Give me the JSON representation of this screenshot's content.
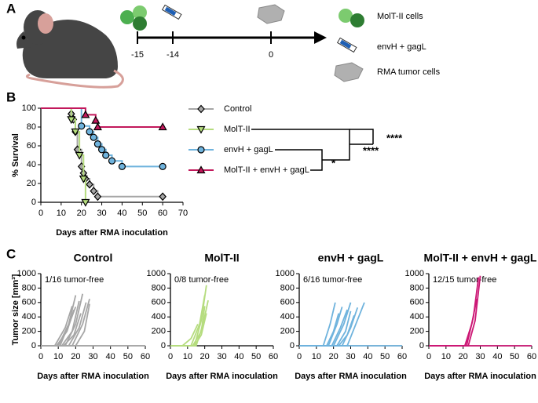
{
  "panel_labels": [
    "A",
    "B",
    "C"
  ],
  "timeline": {
    "days": [
      "-15",
      "-14",
      "0"
    ],
    "legend": [
      "MolT-II cells",
      "envH + gagL",
      "RMA tumor cells"
    ]
  },
  "chart_data": [
    {
      "type": "line",
      "step": true,
      "xlabel": "Days after RMA inoculation",
      "ylabel": "% Survival",
      "xlim": [
        0,
        70
      ],
      "xticks": [
        0,
        10,
        20,
        30,
        40,
        50,
        60,
        70
      ],
      "ylim": [
        0,
        100
      ],
      "yticks": [
        0,
        20,
        40,
        60,
        80,
        100
      ],
      "annotations": [
        "*",
        "****",
        "****"
      ],
      "series": [
        {
          "name": "Control",
          "color": "#a6a6a6",
          "marker": "diamond",
          "x": [
            0,
            15,
            16,
            17,
            18,
            20,
            21,
            22,
            24,
            26,
            28,
            60
          ],
          "values": [
            100,
            94,
            88,
            75,
            56,
            38,
            31,
            25,
            19,
            12,
            6,
            6
          ]
        },
        {
          "name": "MolT-II",
          "color": "#b5dc7e",
          "marker": "triangle-down",
          "x": [
            0,
            15,
            17,
            19,
            21,
            22
          ],
          "values": [
            100,
            88,
            75,
            50,
            25,
            0
          ]
        },
        {
          "name": "envH + gagL",
          "color": "#6fb3dd",
          "marker": "circle",
          "x": [
            0,
            20,
            24,
            26,
            28,
            30,
            32,
            35,
            40,
            60
          ],
          "values": [
            100,
            81,
            75,
            69,
            62,
            56,
            50,
            44,
            38,
            38
          ]
        },
        {
          "name": "MolT-II + envH + gagL",
          "color": "#c2185b",
          "marker": "triangle-up",
          "x": [
            0,
            22,
            27,
            28,
            60
          ],
          "values": [
            100,
            93,
            87,
            80,
            80
          ]
        }
      ]
    },
    {
      "type": "line",
      "title": "Control",
      "ylabel": "Tumor size [mm³]",
      "xlabel": "Days after RMA inoculation",
      "annotation": "1/16 tumor-free",
      "color": "#a6a6a6",
      "xlim": [
        0,
        60
      ],
      "xticks": [
        0,
        10,
        20,
        30,
        40,
        50,
        60
      ],
      "ylim": [
        0,
        1000
      ],
      "yticks": [
        0,
        200,
        400,
        600,
        800,
        1000
      ],
      "series": [
        {
          "x": [
            0,
            60
          ],
          "values": [
            0,
            0
          ]
        },
        {
          "x": [
            0,
            8,
            14,
            18
          ],
          "values": [
            0,
            0,
            250,
            550
          ]
        },
        {
          "x": [
            0,
            10,
            16,
            20
          ],
          "values": [
            0,
            0,
            300,
            700
          ]
        },
        {
          "x": [
            0,
            12,
            18,
            22
          ],
          "values": [
            0,
            0,
            200,
            620
          ]
        },
        {
          "x": [
            0,
            14,
            20,
            24
          ],
          "values": [
            0,
            0,
            300,
            720
          ]
        },
        {
          "x": [
            0,
            9,
            15,
            19
          ],
          "values": [
            0,
            0,
            200,
            500
          ]
        },
        {
          "x": [
            0,
            16,
            22,
            26
          ],
          "values": [
            0,
            0,
            250,
            600
          ]
        },
        {
          "x": [
            0,
            18,
            24,
            28
          ],
          "values": [
            0,
            0,
            300,
            650
          ]
        },
        {
          "x": [
            0,
            11,
            17,
            20
          ],
          "values": [
            0,
            0,
            350,
            540
          ]
        },
        {
          "x": [
            0,
            13,
            19,
            23
          ],
          "values": [
            0,
            0,
            150,
            450
          ]
        },
        {
          "x": [
            0,
            20,
            25,
            28
          ],
          "values": [
            0,
            0,
            200,
            580
          ]
        }
      ]
    },
    {
      "type": "line",
      "title": "MolT-II",
      "xlabel": "Days after RMA inoculation",
      "annotation": "0/8 tumor-free",
      "color": "#b5dc7e",
      "xlim": [
        0,
        60
      ],
      "xticks": [
        0,
        10,
        20,
        30,
        40,
        50,
        60
      ],
      "ylim": [
        0,
        1000
      ],
      "yticks": [
        0,
        200,
        400,
        600,
        800,
        1000
      ],
      "series": [
        {
          "x": [
            0,
            7,
            12,
            16
          ],
          "values": [
            0,
            0,
            100,
            300
          ]
        },
        {
          "x": [
            0,
            12,
            17,
            20
          ],
          "values": [
            0,
            0,
            300,
            700
          ]
        },
        {
          "x": [
            0,
            14,
            18,
            21
          ],
          "values": [
            0,
            0,
            350,
            840
          ]
        },
        {
          "x": [
            0,
            13,
            18,
            20
          ],
          "values": [
            0,
            0,
            200,
            550
          ]
        },
        {
          "x": [
            0,
            15,
            19,
            22
          ],
          "values": [
            0,
            0,
            300,
            630
          ]
        },
        {
          "x": [
            0,
            14,
            18,
            21
          ],
          "values": [
            0,
            0,
            150,
            450
          ]
        }
      ]
    },
    {
      "type": "line",
      "title": "envH + gagL",
      "xlabel": "Days after RMA inoculation",
      "annotation": "6/16 tumor-free",
      "color": "#6fb3dd",
      "xlim": [
        0,
        60
      ],
      "xticks": [
        0,
        10,
        20,
        30,
        40,
        50,
        60
      ],
      "ylim": [
        0,
        1000
      ],
      "yticks": [
        0,
        200,
        400,
        600,
        800,
        1000
      ],
      "series": [
        {
          "x": [
            0,
            60
          ],
          "values": [
            0,
            0
          ]
        },
        {
          "x": [
            0,
            14,
            18,
            21
          ],
          "values": [
            0,
            0,
            300,
            600
          ]
        },
        {
          "x": [
            0,
            16,
            20,
            23
          ],
          "values": [
            0,
            0,
            200,
            450
          ]
        },
        {
          "x": [
            0,
            17,
            22,
            25
          ],
          "values": [
            0,
            0,
            300,
            540
          ]
        },
        {
          "x": [
            0,
            19,
            24,
            28
          ],
          "values": [
            0,
            0,
            250,
            500
          ]
        },
        {
          "x": [
            0,
            20,
            26,
            30
          ],
          "values": [
            0,
            0,
            300,
            600
          ]
        },
        {
          "x": [
            0,
            22,
            27,
            30
          ],
          "values": [
            0,
            0,
            200,
            480
          ]
        },
        {
          "x": [
            0,
            25,
            30,
            34
          ],
          "values": [
            0,
            0,
            250,
            530
          ]
        },
        {
          "x": [
            0,
            28,
            33,
            38
          ],
          "values": [
            0,
            0,
            300,
            600
          ]
        },
        {
          "x": [
            0,
            23,
            28,
            32
          ],
          "values": [
            0,
            0,
            150,
            420
          ]
        }
      ]
    },
    {
      "type": "line",
      "title": "MolT-II + envH + gagL",
      "xlabel": "Days after RMA inoculation",
      "annotation": "12/15 tumor-free",
      "color": "#cc1775",
      "xlim": [
        0,
        60
      ],
      "xticks": [
        0,
        10,
        20,
        30,
        40,
        50,
        60
      ],
      "ylim": [
        0,
        1000
      ],
      "yticks": [
        0,
        200,
        400,
        600,
        800,
        1000
      ],
      "series": [
        {
          "x": [
            0,
            60
          ],
          "values": [
            0,
            0
          ]
        },
        {
          "x": [
            0,
            21,
            25,
            28
          ],
          "values": [
            0,
            0,
            300,
            650
          ]
        },
        {
          "x": [
            0,
            22,
            26,
            29
          ],
          "values": [
            0,
            0,
            400,
            950
          ]
        },
        {
          "x": [
            0,
            23,
            27,
            30
          ],
          "values": [
            0,
            0,
            350,
            970
          ]
        }
      ]
    }
  ]
}
